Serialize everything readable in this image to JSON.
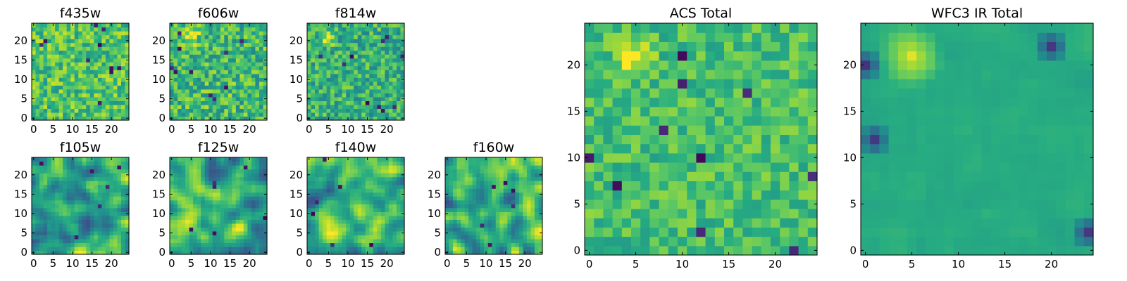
{
  "chart_data": [
    {
      "type": "heatmap",
      "title": "f435w",
      "size": 25,
      "xlim": [
        0,
        25
      ],
      "ylim": [
        0,
        25
      ],
      "xticks": [
        "0",
        "5",
        "10",
        "15",
        "20"
      ],
      "yticks": [
        "0",
        "5",
        "10",
        "15",
        "20"
      ],
      "colormap": "viridis",
      "pattern": "noise",
      "seed": 11,
      "base": 0.72,
      "noise": 0.2,
      "smooth": 0,
      "hot": [],
      "cold": []
    },
    {
      "type": "heatmap",
      "title": "f606w",
      "size": 25,
      "xlim": [
        0,
        25
      ],
      "ylim": [
        0,
        25
      ],
      "xticks": [
        "0",
        "5",
        "10",
        "15",
        "20"
      ],
      "yticks": [
        "0",
        "5",
        "10",
        "15",
        "20"
      ],
      "colormap": "viridis",
      "pattern": "noise",
      "seed": 23,
      "base": 0.68,
      "noise": 0.22,
      "smooth": 0,
      "hot": [
        [
          5,
          21,
          3
        ]
      ],
      "cold": []
    },
    {
      "type": "heatmap",
      "title": "f814w",
      "size": 25,
      "xlim": [
        0,
        25
      ],
      "ylim": [
        0,
        25
      ],
      "xticks": [
        "0",
        "5",
        "10",
        "15",
        "20"
      ],
      "yticks": [
        "0",
        "5",
        "10",
        "15",
        "20"
      ],
      "colormap": "viridis",
      "pattern": "noise",
      "seed": 37,
      "base": 0.64,
      "noise": 0.2,
      "smooth": 0,
      "hot": [
        [
          5,
          21,
          3
        ]
      ],
      "cold": []
    },
    {
      "type": "heatmap",
      "title": "f105w",
      "size": 25,
      "xlim": [
        0,
        25
      ],
      "ylim": [
        0,
        25
      ],
      "xticks": [
        "0",
        "5",
        "10",
        "15",
        "20"
      ],
      "yticks": [
        "0",
        "5",
        "10",
        "15",
        "20"
      ],
      "colormap": "viridis",
      "pattern": "blobs",
      "seed": 41,
      "base": 0.72,
      "noise": 0.3,
      "smooth": 2,
      "hot": [],
      "cold": []
    },
    {
      "type": "heatmap",
      "title": "f125w",
      "size": 25,
      "xlim": [
        0,
        25
      ],
      "ylim": [
        0,
        25
      ],
      "xticks": [
        "0",
        "5",
        "10",
        "15",
        "20"
      ],
      "yticks": [
        "0",
        "5",
        "10",
        "15",
        "20"
      ],
      "colormap": "viridis",
      "pattern": "blobs",
      "seed": 53,
      "base": 0.8,
      "noise": 0.28,
      "smooth": 2,
      "hot": [],
      "cold": []
    },
    {
      "type": "heatmap",
      "title": "f140w",
      "size": 25,
      "xlim": [
        0,
        25
      ],
      "ylim": [
        0,
        25
      ],
      "xticks": [
        "0",
        "5",
        "10",
        "15",
        "20"
      ],
      "yticks": [
        "0",
        "5",
        "10",
        "15",
        "20"
      ],
      "colormap": "viridis",
      "pattern": "blobs",
      "seed": 67,
      "base": 0.78,
      "noise": 0.28,
      "smooth": 2,
      "hot": [],
      "cold": []
    },
    {
      "type": "heatmap",
      "title": "f160w",
      "size": 25,
      "xlim": [
        0,
        25
      ],
      "ylim": [
        0,
        25
      ],
      "xticks": [
        "0",
        "5",
        "10",
        "15",
        "20"
      ],
      "yticks": [
        "0",
        "5",
        "10",
        "15",
        "20"
      ],
      "colormap": "viridis",
      "pattern": "blobs",
      "seed": 79,
      "base": 0.74,
      "noise": 0.32,
      "smooth": 2,
      "hot": [
        [
          2,
          1,
          3
        ]
      ],
      "cold": []
    },
    {
      "type": "heatmap",
      "title": "ACS Total",
      "size": 25,
      "xlim": [
        0,
        25
      ],
      "ylim": [
        0,
        25
      ],
      "xticks": [
        "0",
        "5",
        "10",
        "15",
        "20"
      ],
      "yticks": [
        "0",
        "5",
        "10",
        "15",
        "20"
      ],
      "colormap": "viridis",
      "pattern": "noise",
      "seed": 97,
      "base": 0.7,
      "noise": 0.14,
      "smooth": 0,
      "hot": [
        [
          5,
          21,
          3
        ]
      ],
      "cold": []
    },
    {
      "type": "heatmap",
      "title": "WFC3 IR Total",
      "size": 25,
      "xlim": [
        0,
        25
      ],
      "ylim": [
        0,
        25
      ],
      "xticks": [
        "0",
        "5",
        "10",
        "15",
        "20"
      ],
      "yticks": [
        "0",
        "5",
        "10",
        "15",
        "20"
      ],
      "colormap": "viridis",
      "pattern": "smooth",
      "seed": 113,
      "base": 0.62,
      "noise": 0.08,
      "smooth": 1,
      "hot": [
        [
          5,
          21,
          3.5
        ]
      ],
      "cold": [
        [
          0,
          20,
          2
        ],
        [
          20,
          22,
          2
        ],
        [
          24,
          2,
          2
        ],
        [
          1,
          12,
          2
        ]
      ]
    }
  ],
  "colors": {
    "low": "#440154",
    "high": "#fde725",
    "frame": "#000000"
  }
}
